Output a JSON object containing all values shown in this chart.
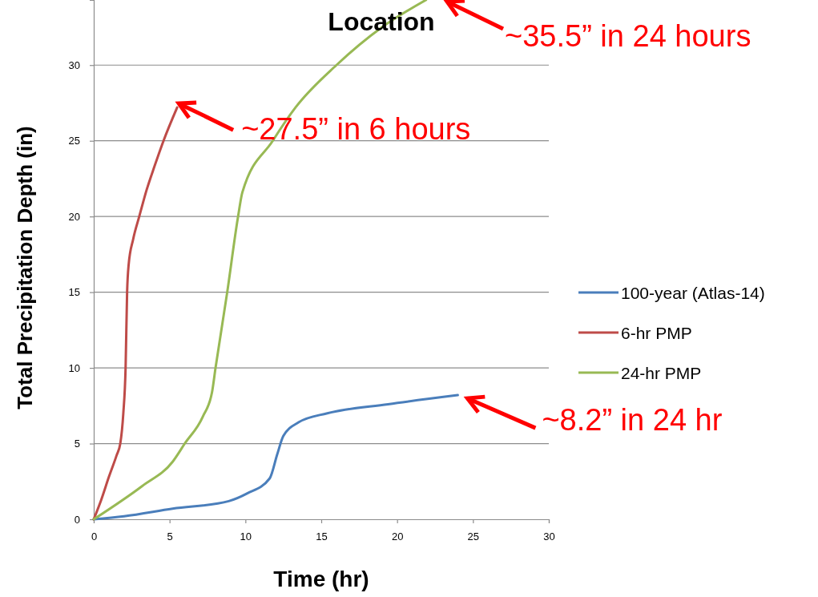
{
  "chart_data": {
    "type": "line",
    "title": "Location",
    "xlabel": "Time (hr)",
    "ylabel": "Total Precipitation Depth (in)",
    "xlim": [
      0,
      30
    ],
    "xticks": [
      0,
      5,
      10,
      15,
      20,
      25,
      30
    ],
    "ylim": [
      0,
      34.3
    ],
    "yticks": [
      0,
      5,
      10,
      15,
      20,
      25,
      30
    ],
    "grid": "y",
    "legend": "right",
    "marker": "none",
    "line_style": "solid",
    "series": [
      {
        "name": "100-year (Atlas-14)",
        "color": "#4a7ebb",
        "x": [
          0,
          2,
          5.2,
          8.9,
          10.1,
          11.6,
          12.1,
          12.5,
          13.5,
          15.4,
          19.4,
          24
        ],
        "values": [
          0,
          0.2,
          0.7,
          1.2,
          1.7,
          2.7,
          4.3,
          5.5,
          6.4,
          7.0,
          7.6,
          8.2
        ]
      },
      {
        "name": "6-hr PMP",
        "color": "#be4b48",
        "x": [
          0,
          0.5,
          1,
          1.5,
          1.75,
          1.95,
          2.1,
          2.2,
          2.3,
          2.6,
          3,
          3.5,
          4,
          4.6,
          5.5
        ],
        "values": [
          0,
          1.3,
          2.8,
          4.2,
          5,
          7,
          10,
          15,
          16.8,
          18.5,
          20,
          21.8,
          23.3,
          25,
          27.2
        ]
      },
      {
        "name": "24-hr PMP",
        "color": "#98b954",
        "x": [
          0,
          3.2,
          5.2,
          6.0,
          7.2,
          7.8,
          8.03,
          8.8,
          9.5,
          9.8,
          11.8,
          13.3,
          16.0,
          19.0,
          21.9
        ],
        "values": [
          0,
          2.2,
          3.8,
          5,
          6.8,
          8.4,
          10,
          15,
          19.9,
          21.6,
          25,
          27.2,
          30,
          32.5,
          34.3
        ]
      }
    ],
    "annotations": [
      "~35.5” in 24 hours",
      {
        "text": "~27.5” in 6 hours",
        "x": 5.5,
        "y": 27.2
      },
      {
        "text": "~8.2” in 24 hr",
        "x": 24,
        "y": 8.2
      }
    ]
  }
}
